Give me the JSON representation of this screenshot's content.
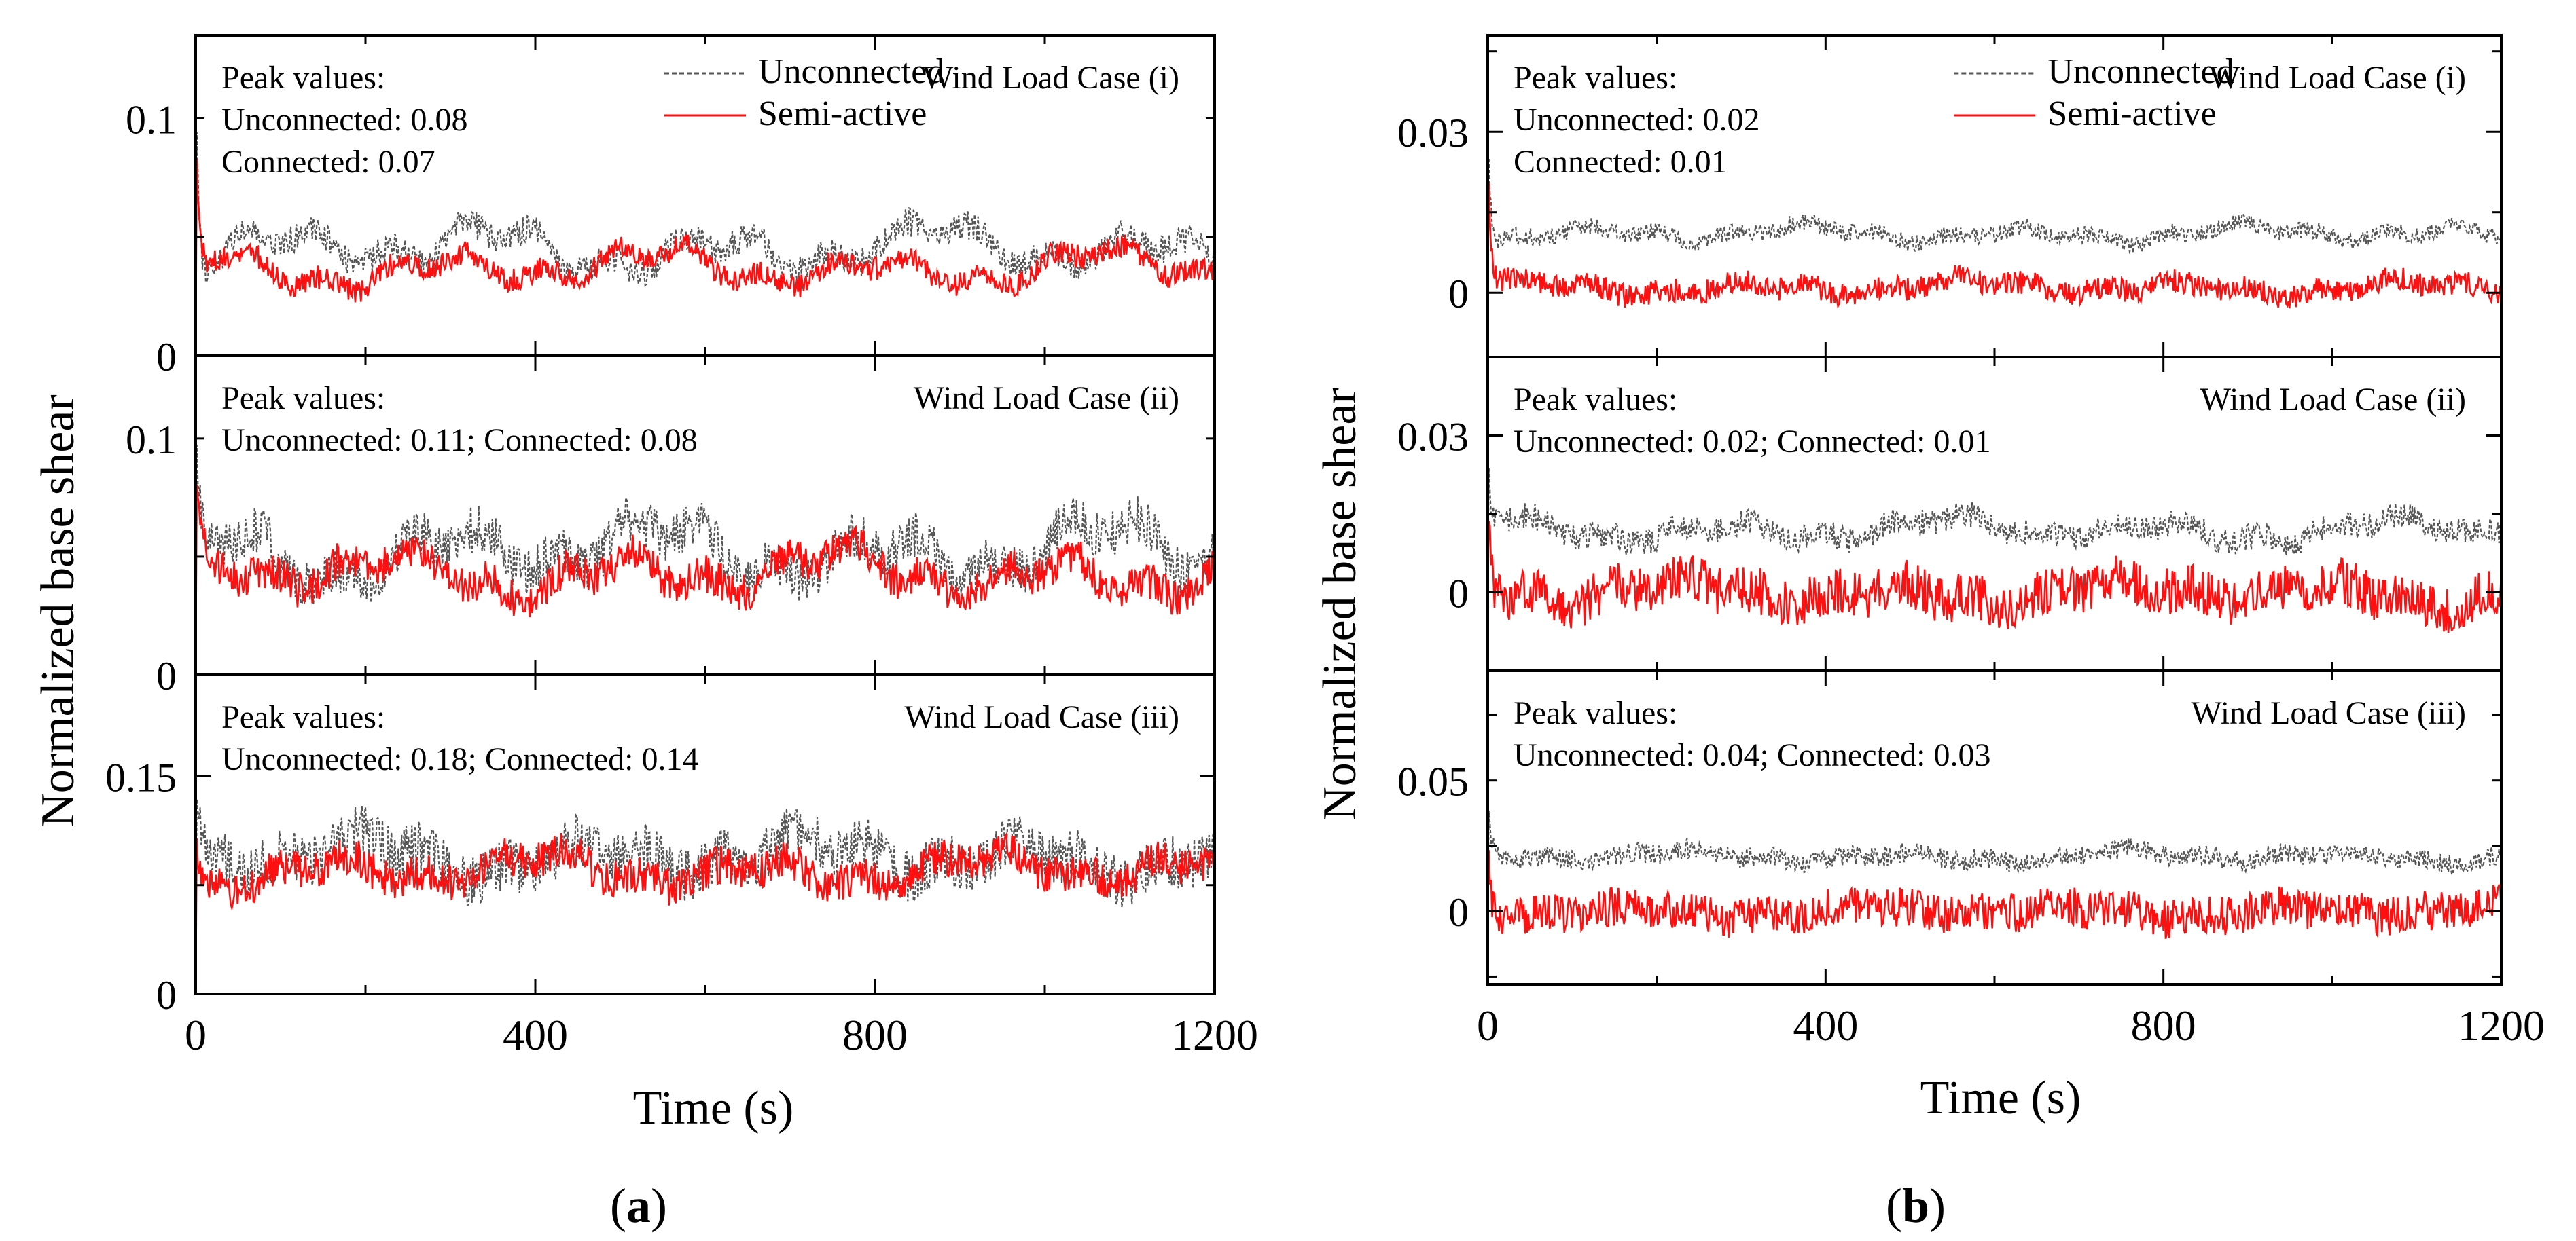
{
  "figure": {
    "xlabel": "Time (s)",
    "ylabel": "Normalized base shear",
    "legend": {
      "unconnected": "Unconnected",
      "semi_active": "Semi-active"
    },
    "colors": {
      "unconnected": "#555555",
      "semi_active": "#ff1010",
      "axis": "#000000"
    },
    "captions": [
      {
        "open": "(",
        "letter": "a",
        "close": ")"
      },
      {
        "open": "(",
        "letter": "b",
        "close": ")"
      }
    ]
  },
  "chart_data": [
    {
      "type": "line",
      "id": "a-i",
      "case_label": "Wind Load Case (i)",
      "peak_lines": [
        "Peak values:",
        "Unconnected: 0.08",
        "Connected: 0.07"
      ],
      "xlabel": "Time (s)",
      "ylabel": "Normalized base shear",
      "xlim": [
        0,
        1200
      ],
      "ylim": [
        0,
        0.135
      ],
      "yticks": [
        {
          "value": 0,
          "label": "0"
        },
        {
          "value": 0.1,
          "label": "0.1"
        }
      ],
      "xticks": [
        {
          "value": 0,
          "label": "0"
        },
        {
          "value": 400,
          "label": "400"
        },
        {
          "value": 800,
          "label": "800"
        },
        {
          "value": 1200,
          "label": "1200"
        }
      ],
      "show_xtick_labels": false,
      "legend_visible": true,
      "series": [
        {
          "name": "Unconnected",
          "style": "dashed",
          "mean": 0.045,
          "amp": 0.012,
          "noise": 0.006,
          "spike": 0.1,
          "seed": 11
        },
        {
          "name": "Semi-active",
          "style": "solid",
          "mean": 0.037,
          "amp": 0.01,
          "noise": 0.005,
          "spike": 0.07,
          "seed": 12
        }
      ]
    },
    {
      "type": "line",
      "id": "a-ii",
      "case_label": "Wind Load Case (ii)",
      "peak_lines": [
        "Peak values:",
        "Unconnected: 0.11; Connected: 0.08"
      ],
      "xlabel": "Time (s)",
      "ylabel": "Normalized base shear",
      "xlim": [
        0,
        1200
      ],
      "ylim": [
        0,
        0.135
      ],
      "yticks": [
        {
          "value": 0,
          "label": "0"
        },
        {
          "value": 0.1,
          "label": "0.1"
        }
      ],
      "xticks": [
        {
          "value": 0,
          "label": "0"
        },
        {
          "value": 400,
          "label": "400"
        },
        {
          "value": 800,
          "label": "800"
        },
        {
          "value": 1200,
          "label": "1200"
        }
      ],
      "show_xtick_labels": false,
      "legend_visible": false,
      "series": [
        {
          "name": "Unconnected",
          "style": "dashed",
          "mean": 0.052,
          "amp": 0.016,
          "noise": 0.01,
          "spike": 0.06,
          "seed": 21
        },
        {
          "name": "Semi-active",
          "style": "solid",
          "mean": 0.043,
          "amp": 0.012,
          "noise": 0.008,
          "spike": 0.05,
          "seed": 22
        }
      ]
    },
    {
      "type": "line",
      "id": "a-iii",
      "case_label": "Wind Load Case (iii)",
      "peak_lines": [
        "Peak values:",
        "Unconnected: 0.18; Connected: 0.14"
      ],
      "xlabel": "Time (s)",
      "ylabel": "Normalized base shear",
      "xlim": [
        0,
        1200
      ],
      "ylim": [
        0,
        0.22
      ],
      "yticks": [
        {
          "value": 0,
          "label": "0"
        },
        {
          "value": 0.15,
          "label": "0.15"
        }
      ],
      "xticks": [
        {
          "value": 0,
          "label": "0"
        },
        {
          "value": 400,
          "label": "400"
        },
        {
          "value": 800,
          "label": "800"
        },
        {
          "value": 1200,
          "label": "1200"
        }
      ],
      "show_xtick_labels": true,
      "legend_visible": false,
      "series": [
        {
          "name": "Unconnected",
          "style": "dashed",
          "mean": 0.095,
          "amp": 0.018,
          "noise": 0.018,
          "spike": 0.05,
          "seed": 31
        },
        {
          "name": "Semi-active",
          "style": "solid",
          "mean": 0.085,
          "amp": 0.014,
          "noise": 0.013,
          "spike": 0.05,
          "seed": 32
        }
      ]
    },
    {
      "type": "line",
      "id": "b-i",
      "case_label": "Wind Load Case (i)",
      "peak_lines": [
        "Peak values:",
        "Unconnected: 0.02",
        "Connected: 0.01"
      ],
      "xlabel": "Time (s)",
      "ylabel": "Normalized base shear",
      "xlim": [
        0,
        1200
      ],
      "ylim": [
        -0.012,
        0.048
      ],
      "yticks": [
        {
          "value": 0,
          "label": "0"
        },
        {
          "value": 0.03,
          "label": "0.03"
        }
      ],
      "xticks": [
        {
          "value": 0,
          "label": "0"
        },
        {
          "value": 400,
          "label": "400"
        },
        {
          "value": 800,
          "label": "800"
        },
        {
          "value": 1200,
          "label": "1200"
        }
      ],
      "show_xtick_labels": false,
      "legend_visible": true,
      "series": [
        {
          "name": "Unconnected",
          "style": "dashed",
          "mean": 0.011,
          "amp": 0.002,
          "noise": 0.0016,
          "spike": 0.025,
          "seed": 41
        },
        {
          "name": "Semi-active",
          "style": "solid",
          "mean": 0.001,
          "amp": 0.0018,
          "noise": 0.0022,
          "spike": 0.03,
          "seed": 42
        }
      ]
    },
    {
      "type": "line",
      "id": "b-ii",
      "case_label": "Wind Load Case (ii)",
      "peak_lines": [
        "Peak values:",
        "Unconnected: 0.02; Connected: 0.01"
      ],
      "xlabel": "Time (s)",
      "ylabel": "Normalized base shear",
      "xlim": [
        0,
        1200
      ],
      "ylim": [
        -0.015,
        0.045
      ],
      "yticks": [
        {
          "value": 0,
          "label": "0"
        },
        {
          "value": 0.03,
          "label": "0.03"
        }
      ],
      "xticks": [
        {
          "value": 0,
          "label": "0"
        },
        {
          "value": 400,
          "label": "400"
        },
        {
          "value": 800,
          "label": "800"
        },
        {
          "value": 1200,
          "label": "1200"
        }
      ],
      "show_xtick_labels": false,
      "legend_visible": false,
      "series": [
        {
          "name": "Unconnected",
          "style": "dashed",
          "mean": 0.012,
          "amp": 0.003,
          "noise": 0.0025,
          "spike": 0.015,
          "seed": 51
        },
        {
          "name": "Semi-active",
          "style": "solid",
          "mean": 0.0,
          "amp": 0.003,
          "noise": 0.0045,
          "spike": 0.02,
          "seed": 52
        }
      ]
    },
    {
      "type": "line",
      "id": "b-iii",
      "case_label": "Wind Load Case (iii)",
      "peak_lines": [
        "Peak values:",
        "Unconnected: 0.04; Connected: 0.03"
      ],
      "xlabel": "Time (s)",
      "ylabel": "Normalized base shear",
      "xlim": [
        0,
        1200
      ],
      "ylim": [
        -0.028,
        0.092
      ],
      "yticks": [
        {
          "value": 0,
          "label": "0"
        },
        {
          "value": 0.05,
          "label": "0.05"
        }
      ],
      "xticks": [
        {
          "value": 0,
          "label": "0"
        },
        {
          "value": 400,
          "label": "400"
        },
        {
          "value": 800,
          "label": "800"
        },
        {
          "value": 1200,
          "label": "1200"
        }
      ],
      "show_xtick_labels": true,
      "legend_visible": false,
      "series": [
        {
          "name": "Unconnected",
          "style": "dashed",
          "mean": 0.021,
          "amp": 0.003,
          "noise": 0.0038,
          "spike": 0.02,
          "seed": 61
        },
        {
          "name": "Semi-active",
          "style": "solid",
          "mean": 0.0,
          "amp": 0.003,
          "noise": 0.0075,
          "spike": 0.03,
          "seed": 62
        }
      ]
    }
  ]
}
